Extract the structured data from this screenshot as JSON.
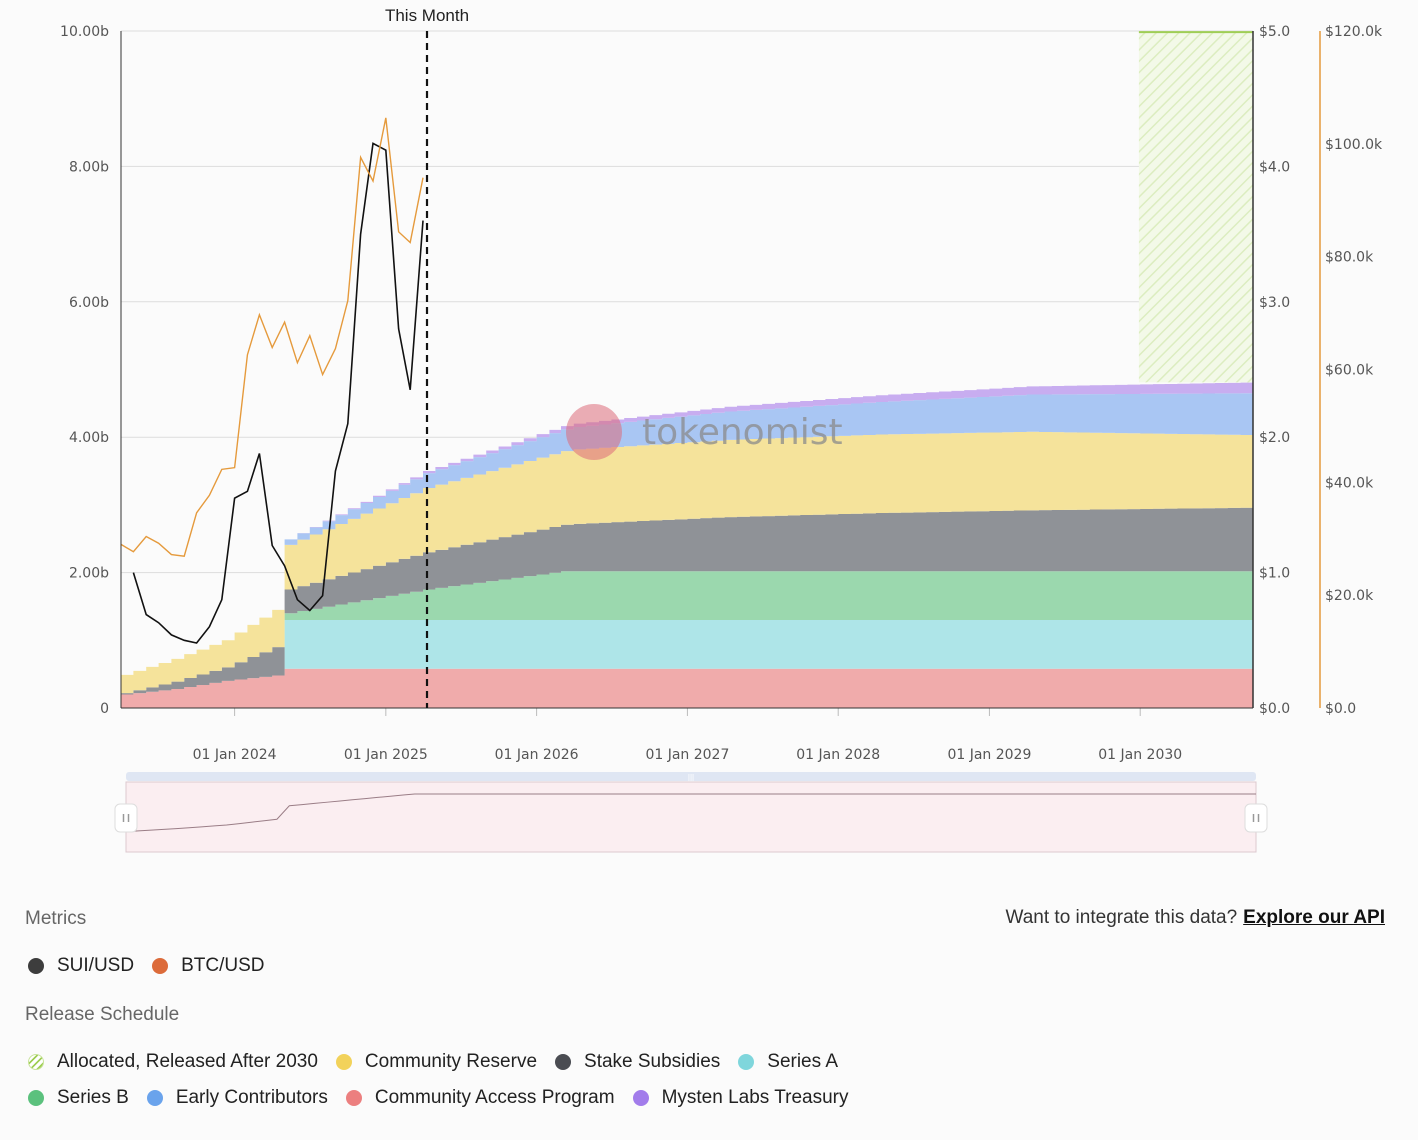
{
  "chart_data": {
    "type": "area",
    "annotation": "This Month",
    "watermark": "tokenomist",
    "left_axis": {
      "ticks": [
        "0",
        "2.00b",
        "4.00b",
        "6.00b",
        "8.00b",
        "10.00b"
      ],
      "range": [
        0,
        10
      ]
    },
    "price_axis": {
      "ticks": [
        "$0.0",
        "$1.0",
        "$2.0",
        "$3.0",
        "$4.0",
        "$5.0"
      ],
      "range": [
        0,
        5
      ]
    },
    "btc_axis": {
      "ticks": [
        "$0.0",
        "$20.0k",
        "$40.0k",
        "$60.0k",
        "$80.0k",
        "$100.0k",
        "$120.0k"
      ],
      "range": [
        0,
        120000
      ]
    },
    "x_ticks": [
      "01 Jan 2024",
      "01 Jan 2025",
      "01 Jan 2026",
      "01 Jan 2027",
      "01 Jan 2028",
      "01 Jan 2029",
      "01 Jan 2030"
    ],
    "x_range": [
      "2023-04-01",
      "2030-10-01"
    ],
    "this_month": "2025-04-01",
    "series": [
      {
        "name": "Community Access Program",
        "color": "#f0abab",
        "points": [
          [
            "2023-04-01",
            0.2
          ],
          [
            "2023-08-01",
            0.28
          ],
          [
            "2023-12-01",
            0.4
          ],
          [
            "2024-04-01",
            0.48
          ],
          [
            "2024-05-01",
            0.58
          ],
          [
            "2030-10-01",
            0.58
          ]
        ]
      },
      {
        "name": "Series A",
        "color": "#aee5e8",
        "points": [
          [
            "2023-04-01",
            0
          ],
          [
            "2024-04-01",
            0
          ],
          [
            "2024-05-01",
            0.72
          ],
          [
            "2025-04-01",
            0.72
          ],
          [
            "2030-10-01",
            0.72
          ]
        ]
      },
      {
        "name": "Series B",
        "color": "#9bd8ae",
        "points": [
          [
            "2023-04-01",
            0
          ],
          [
            "2024-04-01",
            0
          ],
          [
            "2024-05-01",
            0.1
          ],
          [
            "2025-04-01",
            0.45
          ],
          [
            "2026-03-01",
            0.72
          ],
          [
            "2030-10-01",
            0.72
          ]
        ]
      },
      {
        "name": "Stake Subsidies",
        "color": "#8f9297",
        "points": [
          [
            "2023-04-01",
            0.02
          ],
          [
            "2023-12-01",
            0.2
          ],
          [
            "2024-04-01",
            0.42
          ],
          [
            "2024-05-01",
            0.35
          ],
          [
            "2025-04-01",
            0.55
          ],
          [
            "2026-04-01",
            0.7
          ],
          [
            "2027-04-01",
            0.8
          ],
          [
            "2028-04-01",
            0.86
          ],
          [
            "2029-04-01",
            0.9
          ],
          [
            "2030-10-01",
            0.94
          ]
        ]
      },
      {
        "name": "Community Reserve",
        "color": "#f5e39b",
        "points": [
          [
            "2023-04-01",
            0.27
          ],
          [
            "2023-12-01",
            0.4
          ],
          [
            "2024-04-01",
            0.55
          ],
          [
            "2024-05-01",
            0.66
          ],
          [
            "2025-04-01",
            0.95
          ],
          [
            "2026-04-01",
            1.1
          ],
          [
            "2027-04-01",
            1.14
          ],
          [
            "2028-04-01",
            1.16
          ],
          [
            "2029-04-01",
            1.16
          ],
          [
            "2030-10-01",
            1.07
          ]
        ]
      },
      {
        "name": "Early Contributors",
        "color": "#a9c6f3",
        "points": [
          [
            "2023-04-01",
            0
          ],
          [
            "2024-04-01",
            0
          ],
          [
            "2024-05-01",
            0.08
          ],
          [
            "2025-04-01",
            0.22
          ],
          [
            "2026-04-01",
            0.33
          ],
          [
            "2027-04-01",
            0.42
          ],
          [
            "2028-04-01",
            0.48
          ],
          [
            "2029-04-01",
            0.55
          ],
          [
            "2030-10-01",
            0.62
          ]
        ]
      },
      {
        "name": "Mysten Labs Treasury",
        "color": "#c8adf0",
        "points": [
          [
            "2023-04-01",
            0
          ],
          [
            "2024-04-01",
            0
          ],
          [
            "2024-05-01",
            0
          ],
          [
            "2025-04-01",
            0.03
          ],
          [
            "2026-04-01",
            0.05
          ],
          [
            "2027-04-01",
            0.07
          ],
          [
            "2028-04-01",
            0.1
          ],
          [
            "2029-04-01",
            0.12
          ],
          [
            "2030-10-01",
            0.16
          ]
        ]
      },
      {
        "name": "Allocated, Released After 2030",
        "color": "#9fce55",
        "points": [
          [
            "2030-04-01",
            5.2
          ],
          [
            "2030-10-01",
            5.2
          ]
        ]
      }
    ],
    "lines": [
      {
        "name": "SUI/USD",
        "axis": "price",
        "color": "#111111",
        "points": [
          [
            "2023-05-01",
            1.0
          ],
          [
            "2023-06-01",
            0.69
          ],
          [
            "2023-07-01",
            0.63
          ],
          [
            "2023-08-01",
            0.54
          ],
          [
            "2023-09-01",
            0.5
          ],
          [
            "2023-10-01",
            0.48
          ],
          [
            "2023-11-01",
            0.6
          ],
          [
            "2023-12-01",
            0.8
          ],
          [
            "2024-01-01",
            1.55
          ],
          [
            "2024-02-01",
            1.6
          ],
          [
            "2024-03-01",
            1.88
          ],
          [
            "2024-04-01",
            1.2
          ],
          [
            "2024-05-01",
            1.05
          ],
          [
            "2024-06-01",
            0.8
          ],
          [
            "2024-07-01",
            0.72
          ],
          [
            "2024-08-01",
            0.83
          ],
          [
            "2024-09-01",
            1.75
          ],
          [
            "2024-10-01",
            2.1
          ],
          [
            "2024-11-01",
            3.5
          ],
          [
            "2024-12-01",
            4.17
          ],
          [
            "2025-01-01",
            4.12
          ],
          [
            "2025-02-01",
            2.8
          ],
          [
            "2025-03-01",
            2.35
          ],
          [
            "2025-04-01",
            3.6
          ]
        ]
      },
      {
        "name": "BTC/USD",
        "axis": "btc",
        "color": "#e59a3c",
        "points": [
          [
            "2023-04-01",
            29000
          ],
          [
            "2023-05-01",
            27700
          ],
          [
            "2023-06-01",
            30400
          ],
          [
            "2023-07-01",
            29200
          ],
          [
            "2023-08-01",
            27200
          ],
          [
            "2023-09-01",
            26900
          ],
          [
            "2023-10-01",
            34600
          ],
          [
            "2023-11-01",
            37700
          ],
          [
            "2023-12-01",
            42300
          ],
          [
            "2024-01-01",
            42600
          ],
          [
            "2024-02-01",
            62600
          ],
          [
            "2024-03-01",
            69700
          ],
          [
            "2024-04-01",
            63900
          ],
          [
            "2024-05-01",
            68400
          ],
          [
            "2024-06-01",
            61200
          ],
          [
            "2024-07-01",
            66000
          ],
          [
            "2024-08-01",
            59100
          ],
          [
            "2024-09-01",
            63700
          ],
          [
            "2024-10-01",
            72200
          ],
          [
            "2024-11-01",
            97600
          ],
          [
            "2024-12-01",
            93400
          ],
          [
            "2025-01-01",
            104600
          ],
          [
            "2025-02-01",
            84400
          ],
          [
            "2025-03-01",
            82500
          ],
          [
            "2025-04-01",
            94000
          ]
        ]
      }
    ]
  },
  "metrics": {
    "title": "Metrics",
    "items": [
      {
        "label": "SUI/USD",
        "color": "#3d3d3d"
      },
      {
        "label": "BTC/USD",
        "color": "#dc6b3a"
      }
    ]
  },
  "api": {
    "prompt": "Want to integrate this data?",
    "link": "Explore our API"
  },
  "release": {
    "title": "Release Schedule",
    "row1": [
      {
        "label": "Allocated, Released After 2030",
        "hatched": true
      },
      {
        "label": "Community Reserve",
        "color": "#f2d25a"
      },
      {
        "label": "Stake Subsidies",
        "color": "#4a4c52"
      },
      {
        "label": "Series A",
        "color": "#7fd6dc"
      }
    ],
    "row2": [
      {
        "label": "Series B",
        "color": "#5bc17d"
      },
      {
        "label": "Early Contributors",
        "color": "#6aa3ec"
      },
      {
        "label": "Community Access Program",
        "color": "#ec7f7f"
      },
      {
        "label": "Mysten Labs Treasury",
        "color": "#a27ceb"
      }
    ]
  }
}
